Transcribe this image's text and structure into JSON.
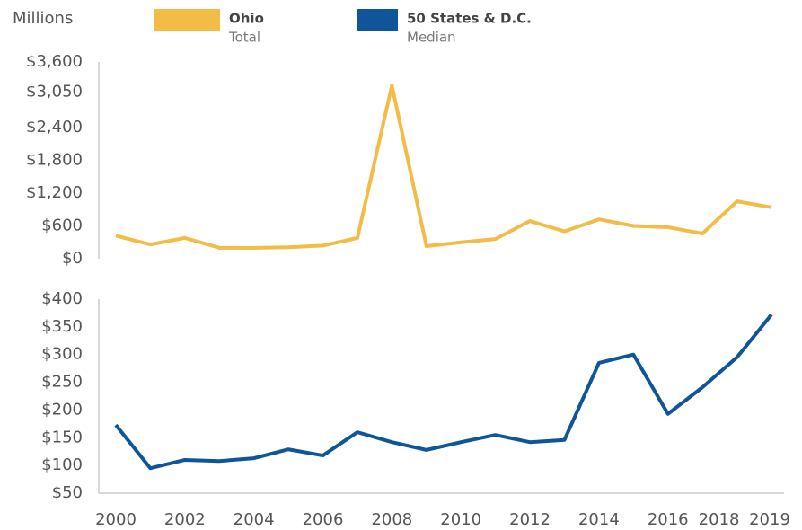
{
  "chart_data": [
    {
      "type": "line",
      "y_label": "Millions",
      "x": [
        2000,
        2001,
        2002,
        2003,
        2004,
        2005,
        2006,
        2007,
        2008,
        2009,
        2010,
        2011,
        2012,
        2013,
        2014,
        2015,
        2016,
        2017,
        2018,
        2019
      ],
      "xlim": [
        2000,
        2019
      ],
      "series": [
        {
          "name": "Ohio",
          "sublabel": "Total",
          "color": "#f2bc46",
          "values": [
            420,
            260,
            380,
            200,
            200,
            210,
            240,
            380,
            3170,
            230,
            300,
            360,
            690,
            500,
            720,
            600,
            575,
            460,
            1050,
            940
          ]
        }
      ],
      "ylim": [
        0,
        3600
      ],
      "yticks": [
        {
          "value": 0,
          "label": "$0"
        },
        {
          "value": 600,
          "label": "$600"
        },
        {
          "value": 1200,
          "label": "$1,200"
        },
        {
          "value": 1800,
          "label": "$1,800"
        },
        {
          "value": 2400,
          "label": "$2,400"
        },
        {
          "value": 3050,
          "label": "$3,050"
        },
        {
          "value": 3600,
          "label": "$3,600"
        }
      ]
    },
    {
      "type": "line",
      "x": [
        2000,
        2001,
        2002,
        2003,
        2004,
        2005,
        2006,
        2007,
        2008,
        2009,
        2010,
        2011,
        2012,
        2013,
        2014,
        2015,
        2016,
        2017,
        2018,
        2019
      ],
      "xlim": [
        2000,
        2019
      ],
      "xticks": [
        2000,
        2002,
        2004,
        2006,
        2008,
        2010,
        2012,
        2014,
        2016,
        2018,
        2019
      ],
      "series": [
        {
          "name": "50 States & D.C.",
          "sublabel": "Median",
          "color": "#0f5599",
          "values": [
            173,
            95,
            110,
            108,
            113,
            129,
            118,
            160,
            142,
            128,
            142,
            155,
            142,
            146,
            285,
            300,
            193,
            241,
            295,
            372
          ]
        }
      ],
      "ylim": [
        50,
        400
      ],
      "yticks": [
        {
          "value": 50,
          "label": "$50"
        },
        {
          "value": 100,
          "label": "$100"
        },
        {
          "value": 150,
          "label": "$150"
        },
        {
          "value": 200,
          "label": "$200"
        },
        {
          "value": 250,
          "label": "$250"
        },
        {
          "value": 300,
          "label": "$300"
        },
        {
          "value": 350,
          "label": "$350"
        },
        {
          "value": 400,
          "label": "$400"
        }
      ]
    }
  ]
}
